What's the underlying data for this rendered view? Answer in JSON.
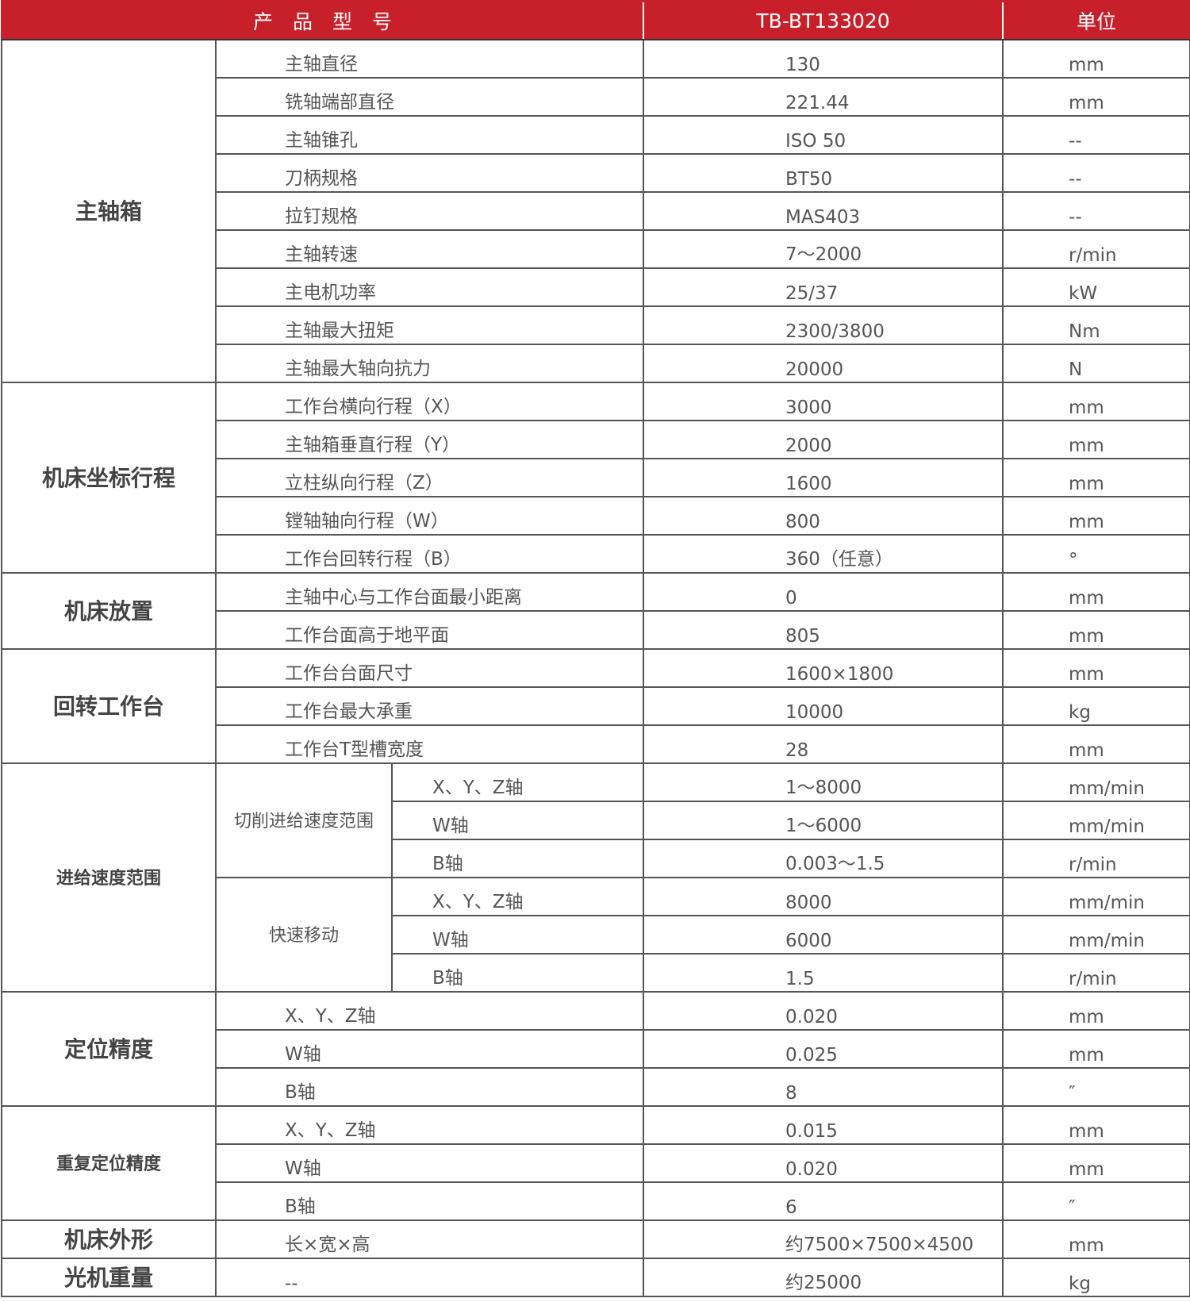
{
  "header": {
    "product_model": "产　品　型　号",
    "model": "TB-BT133020",
    "unit": "单位"
  },
  "colors": {
    "header_bg": "#c8202a",
    "text": "#555555"
  },
  "sections": [
    {
      "label": "主轴箱",
      "rows": [
        {
          "param": "主轴直径",
          "value": "130",
          "unit": "mm"
        },
        {
          "param": "铣轴端部直径",
          "value": "221.44",
          "unit": "mm"
        },
        {
          "param": "主轴锥孔",
          "value": "ISO 50",
          "unit": "--"
        },
        {
          "param": "刀柄规格",
          "value": "BT50",
          "unit": "--"
        },
        {
          "param": "拉钉规格",
          "value": "MAS403",
          "unit": "--"
        },
        {
          "param": "主轴转速",
          "value": "7～2000",
          "unit": "r/min"
        },
        {
          "param": "主电机功率",
          "value": "25/37",
          "unit": "kW"
        },
        {
          "param": "主轴最大扭矩",
          "value": "2300/3800",
          "unit": "Nm"
        },
        {
          "param": "主轴最大轴向抗力",
          "value": "20000",
          "unit": "N"
        }
      ]
    },
    {
      "label": "机床坐标行程",
      "rows": [
        {
          "param": "工作台横向行程（X）",
          "value": "3000",
          "unit": "mm"
        },
        {
          "param": "主轴箱垂直行程（Y）",
          "value": "2000",
          "unit": "mm"
        },
        {
          "param": "立柱纵向行程（Z）",
          "value": "1600",
          "unit": "mm"
        },
        {
          "param": "镗轴轴向行程（W）",
          "value": "800",
          "unit": "mm"
        },
        {
          "param": "工作台回转行程（B）",
          "value": "360（任意）",
          "unit": "°"
        }
      ]
    },
    {
      "label": "机床放置",
      "rows": [
        {
          "param": "主轴中心与工作台面最小距离",
          "value": "0",
          "unit": "mm"
        },
        {
          "param": "工作台面高于地平面",
          "value": "805",
          "unit": "mm"
        }
      ]
    },
    {
      "label": "回转工作台",
      "rows": [
        {
          "param": "工作台台面尺寸",
          "value": "1600×1800",
          "unit": "mm"
        },
        {
          "param": "工作台最大承重",
          "value": "10000",
          "unit": "kg"
        },
        {
          "param": "工作台T型槽宽度",
          "value": "28",
          "unit": "mm"
        }
      ]
    },
    {
      "label": "进给速度范围",
      "small": true,
      "subgroups": [
        {
          "label": "切削进给速度范围",
          "rows": [
            {
              "param": "X、Y、Z轴",
              "value": "1～8000",
              "unit": "mm/min"
            },
            {
              "param": "W轴",
              "value": "1～6000",
              "unit": "mm/min"
            },
            {
              "param": "B轴",
              "value": "0.003～1.5",
              "unit": "r/min"
            }
          ]
        },
        {
          "label": "快速移动",
          "rows": [
            {
              "param": "X、Y、Z轴",
              "value": "8000",
              "unit": "mm/min"
            },
            {
              "param": "W轴",
              "value": "6000",
              "unit": "mm/min"
            },
            {
              "param": "B轴",
              "value": "1.5",
              "unit": "r/min"
            }
          ]
        }
      ]
    },
    {
      "label": "定位精度",
      "rows": [
        {
          "param": "X、Y、Z轴",
          "value": "0.020",
          "unit": "mm"
        },
        {
          "param": "W轴",
          "value": "0.025",
          "unit": "mm"
        },
        {
          "param": "B轴",
          "value": "8",
          "unit": "″"
        }
      ]
    },
    {
      "label": "重复定位精度",
      "small": true,
      "rows": [
        {
          "param": "X、Y、Z轴",
          "value": "0.015",
          "unit": "mm"
        },
        {
          "param": "W轴",
          "value": "0.020",
          "unit": "mm"
        },
        {
          "param": "B轴",
          "value": "6",
          "unit": "″"
        }
      ]
    },
    {
      "label": "机床外形",
      "rows": [
        {
          "param": "长×宽×高",
          "value": "约7500×7500×4500",
          "unit": "mm"
        }
      ]
    },
    {
      "label": "光机重量",
      "rows": [
        {
          "param": "--",
          "value": "约25000",
          "unit": "kg"
        }
      ]
    }
  ]
}
